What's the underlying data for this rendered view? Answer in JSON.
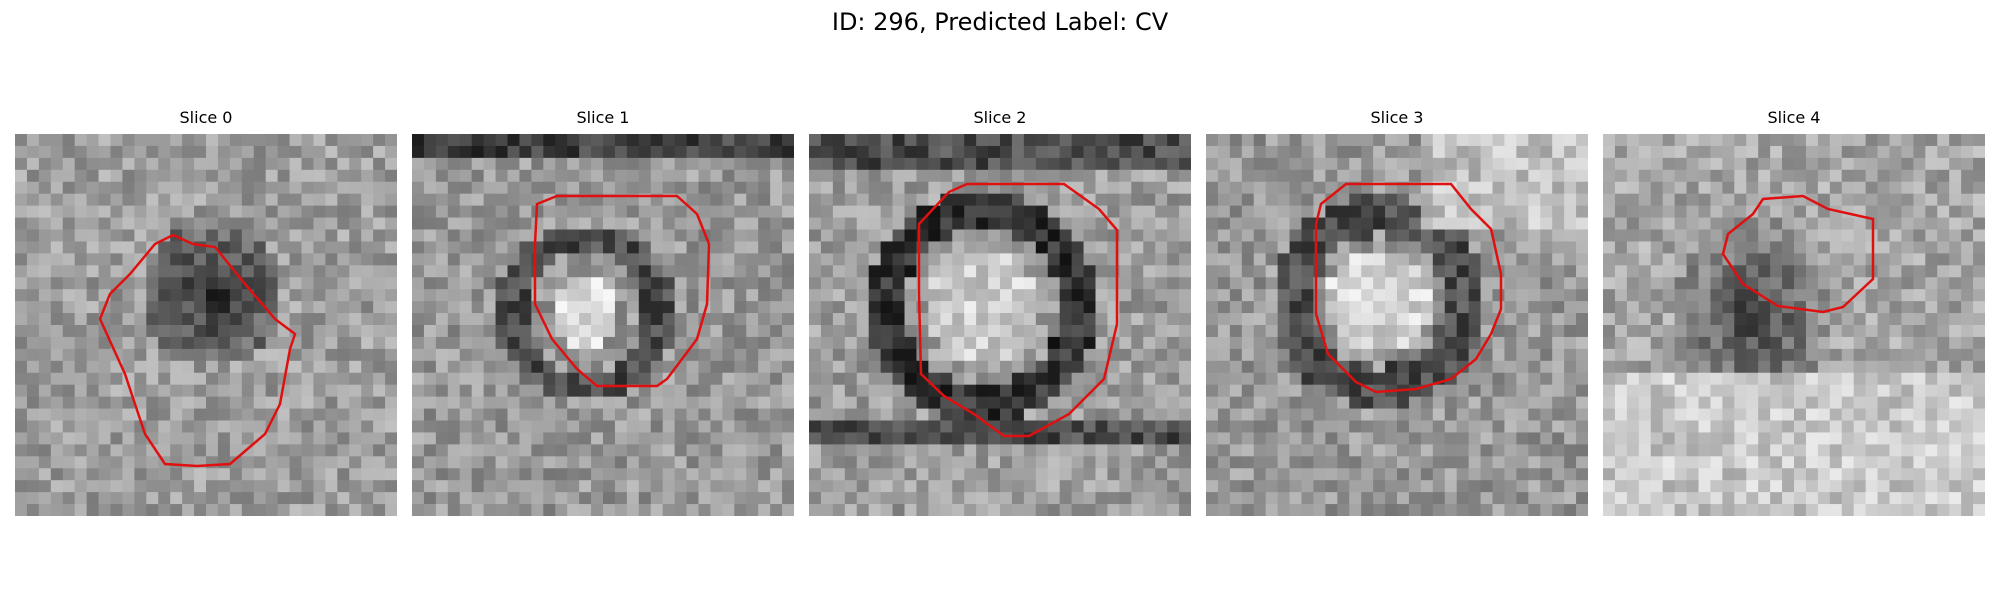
{
  "figure": {
    "title": "ID: 296, Predicted Label: CV"
  },
  "panels": [
    {
      "title": "Slice 0"
    },
    {
      "title": "Slice 1"
    },
    {
      "title": "Slice 2"
    },
    {
      "title": "Slice 3"
    },
    {
      "title": "Slice 4"
    }
  ],
  "colors": {
    "contour": "#e01010",
    "background": "#ffffff"
  }
}
